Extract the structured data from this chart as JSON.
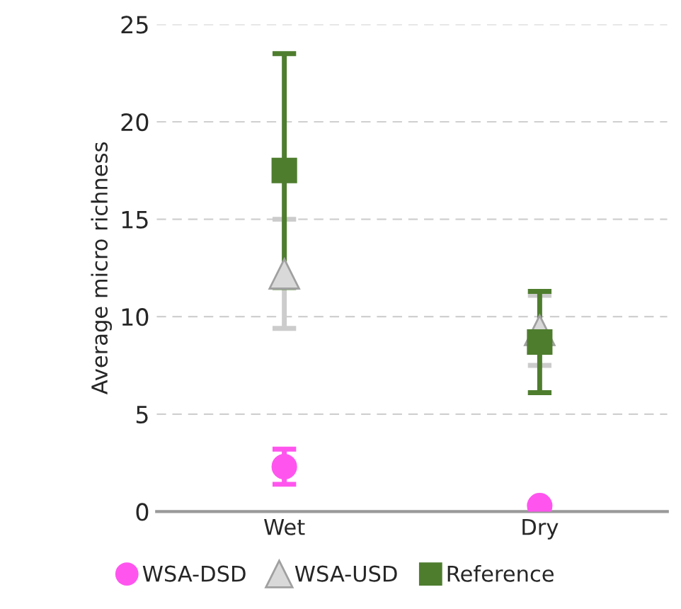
{
  "chart_data": {
    "type": "scatter",
    "ylabel": "Average micro richness",
    "categories": [
      "Wet",
      "Dry"
    ],
    "series": [
      {
        "name": "WSA-DSD",
        "color": "#ff55ee",
        "marker": "circle",
        "values": [
          2.3,
          0.3
        ],
        "errors": [
          0.9,
          null
        ]
      },
      {
        "name": "WSA-USD",
        "color": "#d9d9d9",
        "marker": "triangle",
        "values": [
          12.2,
          9.3
        ],
        "errors": [
          2.8,
          1.8
        ]
      },
      {
        "name": "Reference",
        "color": "#4e7d2e",
        "marker": "square",
        "values": [
          17.5,
          8.7
        ],
        "errors": [
          6.0,
          2.6
        ]
      }
    ],
    "ylim": [
      0,
      25
    ],
    "yticks": [
      0,
      5,
      10,
      15,
      20,
      25
    ],
    "grid": "y",
    "legend": "bottom"
  }
}
